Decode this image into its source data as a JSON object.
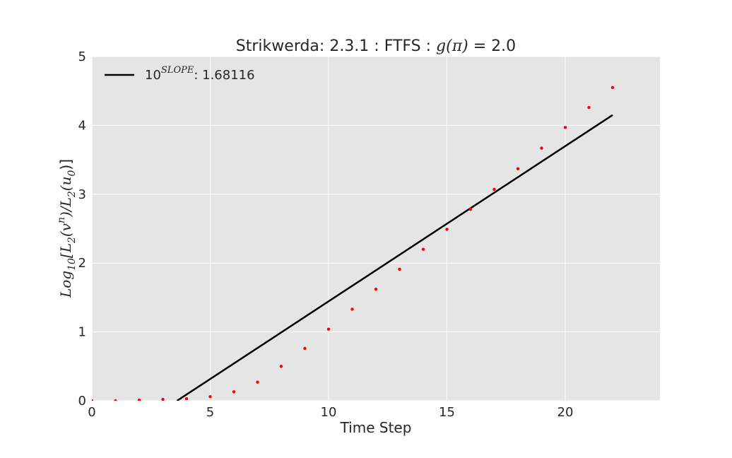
{
  "chart_data": {
    "type": "scatter",
    "title_prefix": "Strikwerda: 2.3.1 : FTFS : ",
    "title_math": "g(π)",
    "title_suffix": " = 2.0",
    "xlabel": "Time Step",
    "ylabel_parts": [
      "Log",
      "10",
      "[L",
      "2",
      "(v",
      "n",
      ")/L",
      "2",
      "(u",
      "0",
      ")]"
    ],
    "xlim": [
      0,
      24
    ],
    "ylim": [
      0,
      5
    ],
    "xticks": [
      0,
      5,
      10,
      15,
      20
    ],
    "yticks": [
      0,
      1,
      2,
      3,
      4,
      5
    ],
    "grid": true,
    "legend": {
      "placement": "top-left",
      "base": "10",
      "sup": "SLOPE",
      "suffix": ": 1.68116"
    },
    "points": {
      "color": "#ff0000",
      "x": [
        0,
        1,
        2,
        3,
        4,
        5,
        6,
        7,
        8,
        9,
        10,
        11,
        12,
        13,
        14,
        15,
        16,
        17,
        18,
        19,
        20,
        21,
        22
      ],
      "y": [
        0.0,
        0.0,
        0.01,
        0.02,
        0.03,
        0.06,
        0.13,
        0.27,
        0.5,
        0.76,
        1.04,
        1.33,
        1.62,
        1.91,
        2.2,
        2.49,
        2.78,
        3.07,
        3.37,
        3.67,
        3.97,
        4.26,
        4.55
      ]
    },
    "fit_line": {
      "color": "#000000",
      "x": [
        3.6,
        22
      ],
      "y": [
        0.0,
        4.15
      ]
    }
  }
}
